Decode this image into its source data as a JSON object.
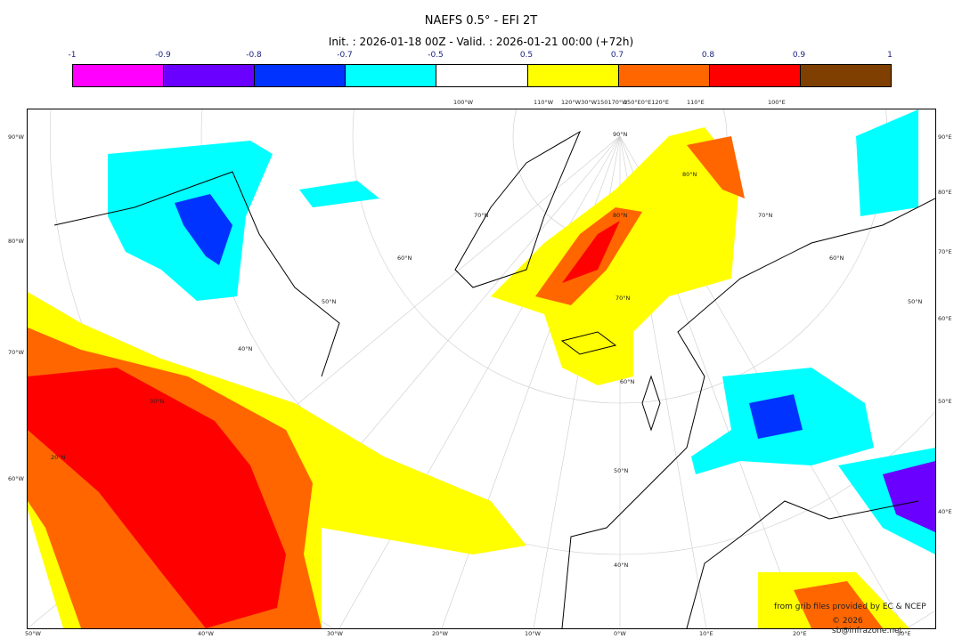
{
  "title": "NAEFS 0.5° - EFI 2T",
  "subtitle": "Init. : 2026-01-18 00Z - Valid. : 2026-01-21 00:00 (+72h)",
  "colorbar": {
    "ticks": [
      "-1",
      "-0.9",
      "-0.8",
      "-0.7",
      "-0.5",
      "0.5",
      "0.7",
      "0.8",
      "0.9",
      "1"
    ],
    "colors": [
      "#ff00ff",
      "#6a00ff",
      "#0033ff",
      "#00ffff",
      "#ffffff",
      "#ffff00",
      "#ff6600",
      "#ff0000",
      "#7f3f00"
    ]
  },
  "axes": {
    "left": [
      "90°W",
      "80°W",
      "70°W",
      "60°W"
    ],
    "right": [
      "90°E",
      "80°E",
      "70°E",
      "60°E",
      "50°E",
      "40°E"
    ],
    "bottom": [
      "50°W",
      "40°W",
      "30°W",
      "20°W",
      "10°W",
      "0°W",
      "10°E",
      "20°E",
      "30°E"
    ],
    "top": [
      "100°W",
      "110°W",
      "120°W30°W150170°W",
      "150°E0°E120°E",
      "110°E",
      "100°E"
    ],
    "lat": [
      "90°N",
      "80°N",
      "80°N",
      "70°N",
      "70°N",
      "70°N",
      "60°N",
      "60°N",
      "60°N",
      "50°N",
      "50°N",
      "50°N",
      "40°N",
      "40°N",
      "30°N",
      "20°N"
    ]
  },
  "credits": {
    "source": "from grib files provided by EC & NCEP",
    "copyright": "© 2026 sb@infrazone.net"
  }
}
